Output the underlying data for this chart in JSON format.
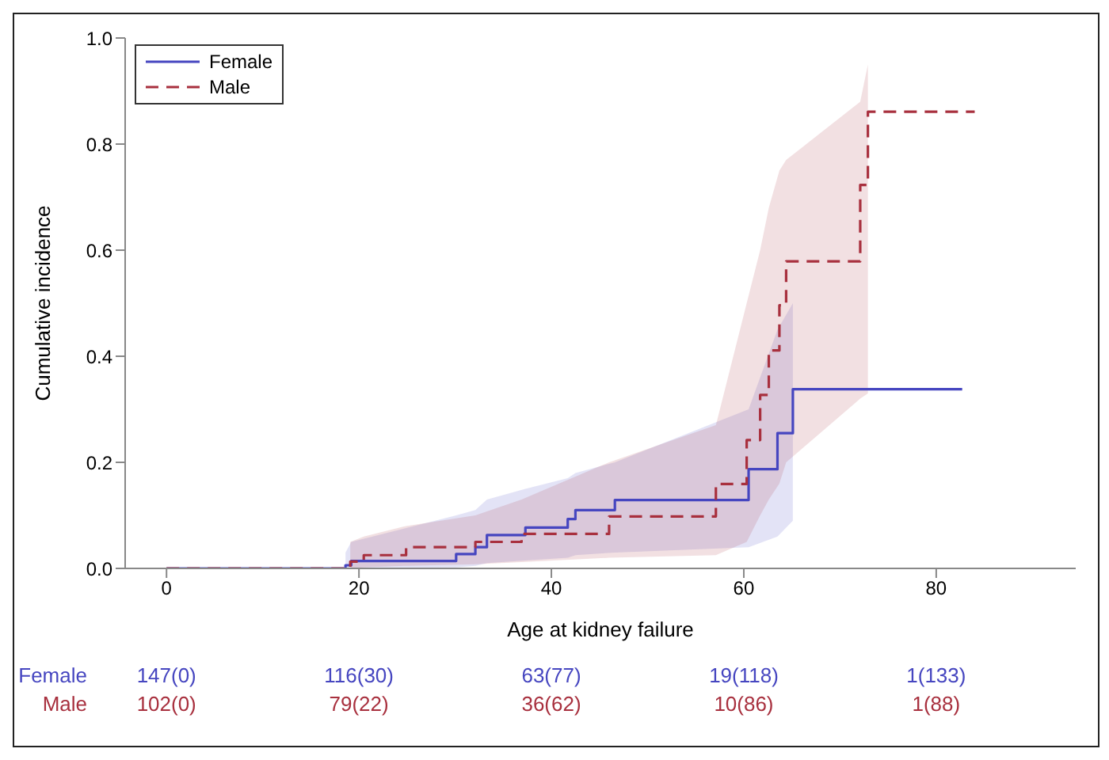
{
  "chart_data": {
    "type": "step",
    "xlabel": "Age at kidney failure",
    "ylabel": "Cumulative incidence",
    "xlim": [
      -4.3,
      94.5
    ],
    "xticks": [
      0,
      20,
      40,
      60,
      80
    ],
    "ylim": [
      0,
      1.0
    ],
    "yticks": [
      {
        "value": 0,
        "label": "0.0"
      },
      {
        "value": 0.2,
        "label": "0.2"
      },
      {
        "value": 0.4,
        "label": "0.4"
      },
      {
        "value": 0.6,
        "label": "0.6"
      },
      {
        "value": 0.8,
        "label": "0.8"
      },
      {
        "value": 1.0,
        "label": "1.0"
      }
    ],
    "grid": false,
    "legend": "top left",
    "marker": "none",
    "series": [
      {
        "name": "Female",
        "color": "#4646c0",
        "line_style": "solid",
        "x": [
          0,
          18.6,
          19.2,
          30.1,
          32.1,
          33.3,
          37.3,
          41.7,
          42.5,
          46.6,
          60.5,
          63.5,
          65.1,
          82.7
        ],
        "values": [
          0,
          0.006,
          0.014,
          0.027,
          0.04,
          0.063,
          0.077,
          0.093,
          0.11,
          0.129,
          0.187,
          0.255,
          0.338,
          0.338
        ],
        "lower": [
          null,
          0,
          0,
          0.002,
          0.005,
          0.01,
          0.015,
          0.02,
          0.025,
          0.03,
          0.04,
          0.06,
          0.09,
          null
        ],
        "upper": [
          null,
          0.03,
          0.05,
          0.1,
          0.11,
          0.13,
          0.15,
          0.17,
          0.18,
          0.2,
          0.3,
          0.45,
          0.5,
          null
        ]
      },
      {
        "name": "Male",
        "color": "#a8303e",
        "line_style": "dashed",
        "x": [
          0,
          19.1,
          20.5,
          24.9,
          32.1,
          36.9,
          46,
          57.1,
          60.3,
          61.7,
          62.6,
          63.7,
          64.4,
          72.1,
          72.9,
          84
        ],
        "values": [
          0,
          0.013,
          0.025,
          0.04,
          0.05,
          0.065,
          0.098,
          0.159,
          0.242,
          0.327,
          0.411,
          0.496,
          0.579,
          0.723,
          0.861,
          0.861
        ],
        "lower": [
          null,
          0,
          0.002,
          0.005,
          0.008,
          0.012,
          0.02,
          0.025,
          0.05,
          0.1,
          0.13,
          0.16,
          0.2,
          0.32,
          0.33,
          null
        ],
        "upper": [
          null,
          0.05,
          0.06,
          0.08,
          0.1,
          0.13,
          0.2,
          0.27,
          0.5,
          0.6,
          0.68,
          0.75,
          0.77,
          0.88,
          0.95,
          null
        ]
      }
    ],
    "annotations": [
      "147(0)",
      "116(30)",
      "63(77)",
      "19(118)",
      "1(133)",
      "102(0)",
      "79(22)",
      "36(62)",
      "10(86)",
      "1(88)"
    ]
  }
}
